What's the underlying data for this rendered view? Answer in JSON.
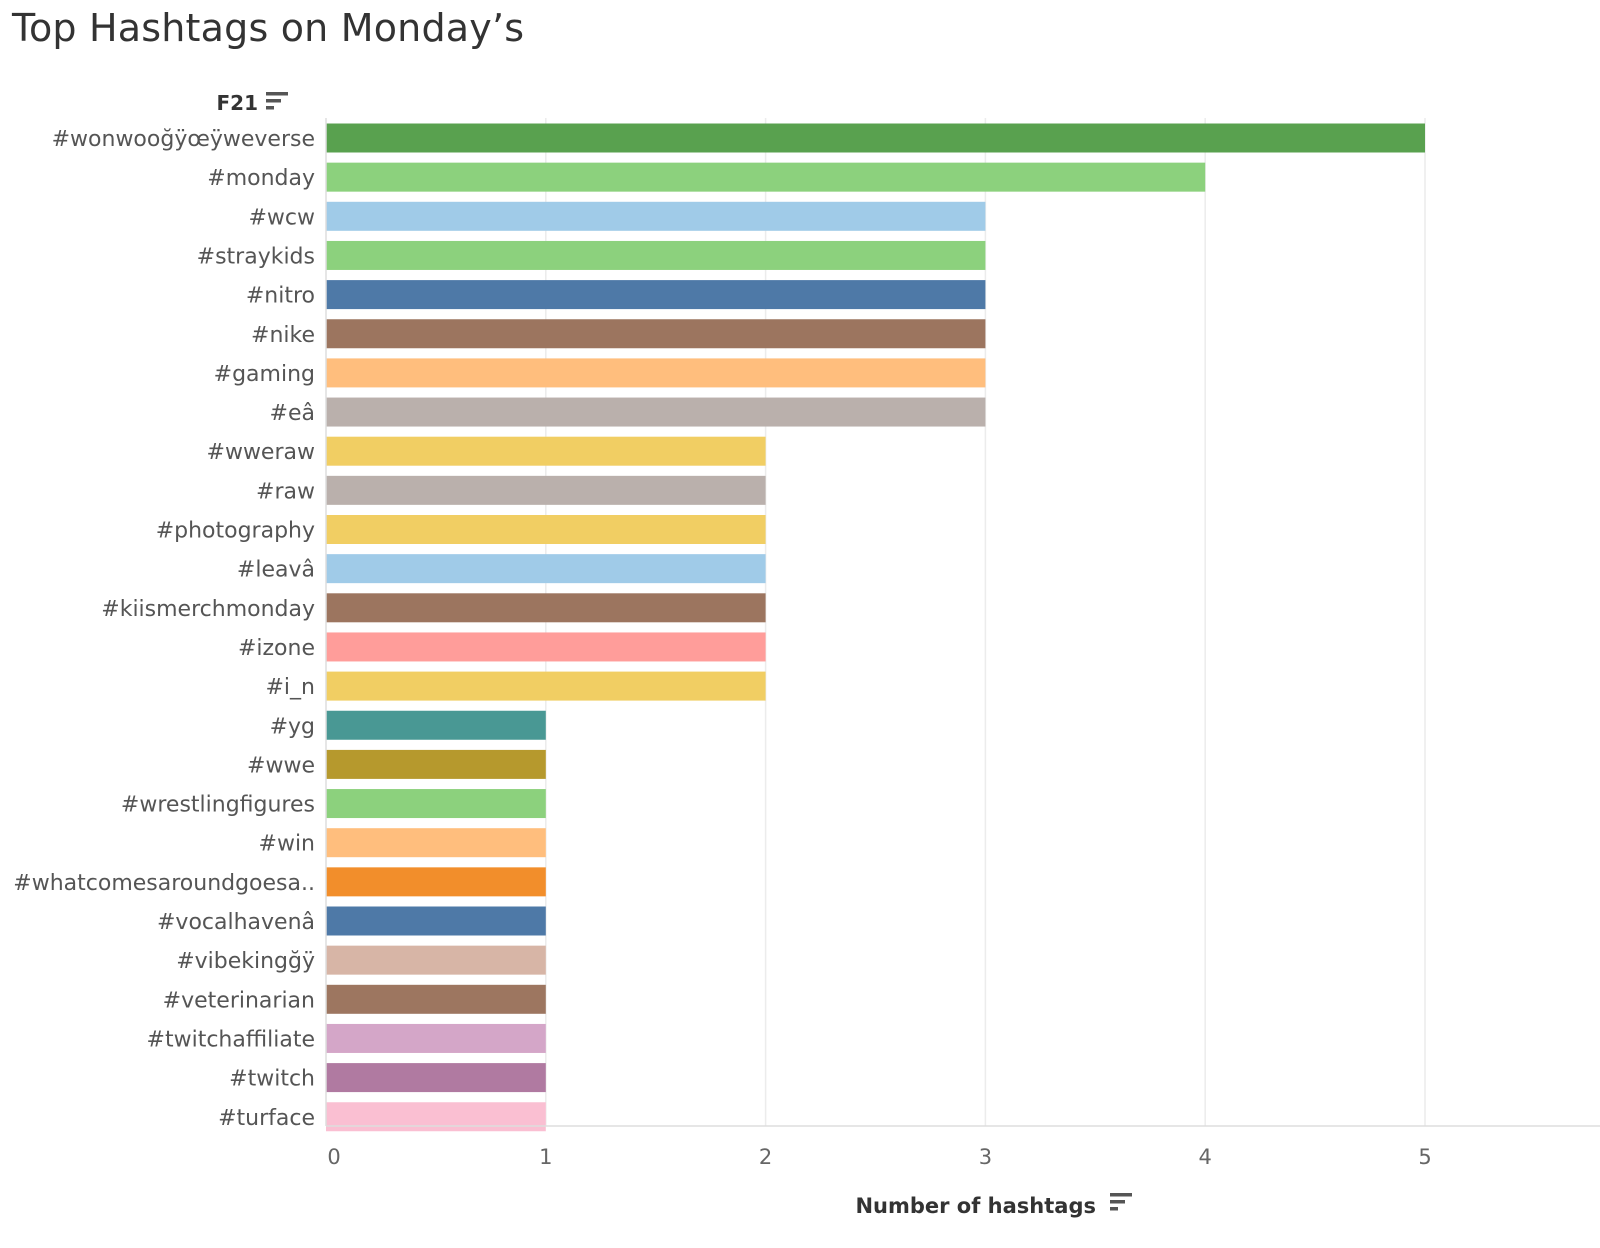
{
  "title": "Top Hashtags on Monday’s",
  "row_header": "F21",
  "row_header_icon": "sort-icon",
  "chart_data": {
    "type": "bar",
    "orientation": "horizontal",
    "title": "Top Hashtags on Monday’s",
    "xlabel": "Number of hashtags",
    "ylabel": "F21",
    "xlim": [
      0,
      5.6
    ],
    "ticks": [
      0,
      1,
      2,
      3,
      4,
      5
    ],
    "grid": true,
    "categories": [
      "#wonwooğÿœÿweverse",
      "#monday",
      "#wcw",
      "#straykids",
      "#nitro",
      "#nike",
      "#gaming",
      "#eâ",
      "#wweraw",
      "#raw",
      "#photography",
      "#leavâ",
      "#kiismerchmonday",
      "#izone",
      "#i_n",
      "#yg",
      "#wwe",
      "#wrestlingfigures",
      "#win",
      "#whatcomesaroundgoesa..",
      "#vocalhavenâ",
      "#vibekingğÿ",
      "#veterinarian",
      "#twitchaffiliate",
      "#twitch",
      "#turface"
    ],
    "values": [
      5,
      4,
      3,
      3,
      3,
      3,
      3,
      3,
      2,
      2,
      2,
      2,
      2,
      2,
      2,
      1,
      1,
      1,
      1,
      1,
      1,
      1,
      1,
      1,
      1,
      1
    ],
    "colors": [
      "#59a14f",
      "#8cd17d",
      "#a0cbe8",
      "#8cd17d",
      "#4e79a7",
      "#9c755f",
      "#ffbe7d",
      "#bab0ac",
      "#f1ce63",
      "#bab0ac",
      "#f1ce63",
      "#a0cbe8",
      "#9c755f",
      "#ff9d9a",
      "#f1ce63",
      "#499894",
      "#b6992d",
      "#8cd17d",
      "#ffbe7d",
      "#f28e2b",
      "#4e79a7",
      "#d7b5a6",
      "#9d7660",
      "#d4a6c8",
      "#b07aa1",
      "#fabfd2"
    ]
  }
}
